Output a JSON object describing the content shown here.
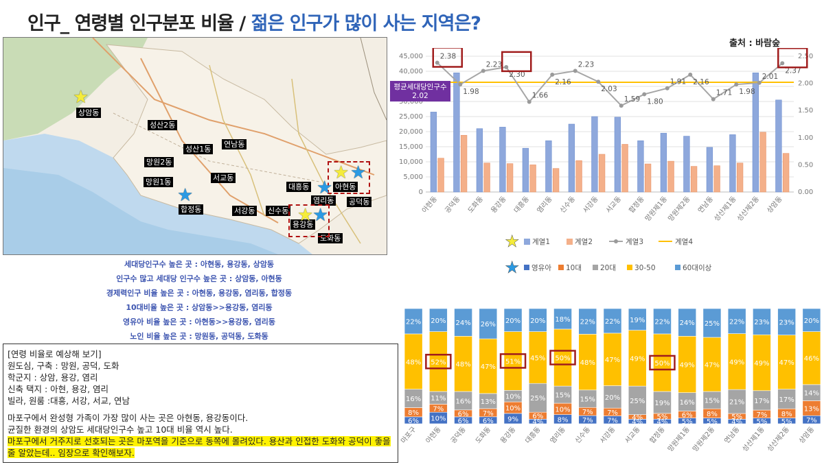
{
  "header": {
    "title_main": "인구_ 연령별 인구분포 비율 /",
    "title_highlight": "젊은 인구가 많이 사는 지역은?",
    "source": "출처 : 바람숲"
  },
  "map": {
    "labels": [
      "상암동",
      "성산2동",
      "성산1동",
      "연남동",
      "망원2동",
      "서교동",
      "망원1동",
      "대흥동",
      "아현동",
      "염리동",
      "공덕동",
      "합정동",
      "서강동",
      "신수동",
      "용강동",
      "도화동"
    ]
  },
  "summary": {
    "lines": [
      "세대당인구수 높은 곳 : 아현동, 용강동, 상암동",
      "인구수 많고 세대당 인구수 높은 곳 : 상암동, 아현동",
      "경제력인구 비율 높은 곳 : 아현동, 용강동, 염리동, 합정동",
      "10대비율 높은 곳 : 상암동>>용강동, 염리동",
      "영유아 비율 높은 곳 : 아현동>>용강동, 염리동",
      "노인 비율 높은 곳 : 망원동, 공덕동, 도화동"
    ]
  },
  "notes": {
    "heading": "[연령 비율로 예상해 보기]",
    "items": [
      "원도심, 구축 : 망원, 공덕, 도화",
      "학군지 : 상암, 용강, 염리",
      "신축 택지 : 아현, 용강, 염리",
      "빌라, 원룸 :대흥, 서강, 서교, 연남"
    ],
    "para1": "마포구에서 완성형 가족이 가장 많이 사는 곳은 아현동, 용강동이다.",
    "para2": "균질한 환경의 상암도 세대당인구수 높고 10대 비율 역시 높다.",
    "highlight": "마포구에서 거주지로 선호되는 곳은 마포역을 기준으로 동쪽에 몰려있다. 용산과 인접한 도화와 공덕이 좋을 줄 알았는데.. 임장으로 확인해보자."
  },
  "colors": {
    "series1": "#8ea8dc",
    "series2": "#f4b08a",
    "series3": "#a6a6a6",
    "series4": "#ffc000",
    "infant": "#4472c4",
    "teen": "#ed7d31",
    "twenties": "#a5a5a5",
    "thirty_fifty": "#ffc000",
    "sixty_plus": "#5b9bd5",
    "callout_box": "#a01c1c",
    "avg_label_bg": "#7030a0"
  },
  "chart_data": [
    {
      "type": "bar",
      "categories": [
        "아현동",
        "공덕동",
        "도화동",
        "용강동",
        "대흥동",
        "염리동",
        "신수동",
        "서강동",
        "서교동",
        "합정동",
        "망원제1동",
        "망원제2동",
        "연남동",
        "성산제1동",
        "성산제2동",
        "상암동"
      ],
      "ylim": [
        0,
        45000
      ],
      "y_ticks": [
        "0",
        "5,000",
        "10,000",
        "15,000",
        "20,000",
        "25,000",
        "30,000",
        "35,000",
        "40,000",
        "45,000"
      ],
      "y2lim": [
        0,
        2.5
      ],
      "y2_ticks": [
        "0.00",
        "0.50",
        "1.00",
        "1.50",
        "2.00",
        "2.50"
      ],
      "series": [
        {
          "name": "계열1",
          "axis": "left",
          "values": [
            26500,
            39500,
            21000,
            21500,
            14500,
            17000,
            22500,
            25000,
            24800,
            17000,
            19500,
            18500,
            14800,
            19000,
            39500,
            30500
          ]
        },
        {
          "name": "계열2",
          "axis": "left",
          "values": [
            11200,
            18800,
            9600,
            9400,
            9000,
            7800,
            10400,
            12500,
            15800,
            9300,
            10200,
            8500,
            8700,
            9600,
            19800,
            12800
          ]
        },
        {
          "name": "계열3",
          "axis": "right",
          "values": [
            2.38,
            1.98,
            2.23,
            2.3,
            1.66,
            2.16,
            2.23,
            2.03,
            1.59,
            1.8,
            1.91,
            2.16,
            1.71,
            1.98,
            2.01,
            2.37
          ],
          "labels": [
            "2.38",
            "1.98",
            "2.23",
            "2.30",
            "1.66",
            "2.16",
            "2.23",
            "2.03",
            "1.59",
            "1.80",
            "1.91",
            "2.16",
            "1.71",
            "1.98",
            "2.01",
            "2.37"
          ]
        },
        {
          "name": "계열4",
          "axis": "right",
          "values": [
            2.02,
            2.02,
            2.02,
            2.02,
            2.02,
            2.02,
            2.02,
            2.02,
            2.02,
            2.02,
            2.02,
            2.02,
            2.02,
            2.02,
            2.02,
            2.02
          ]
        }
      ],
      "annotation": {
        "label": "평균세대당인구수",
        "value": "2.02"
      },
      "highlighted": [
        "아현동",
        "용강동",
        "상암동"
      ]
    },
    {
      "type": "bar",
      "stacked": true,
      "percent": true,
      "categories": [
        "마포구",
        "아현동",
        "공덕동",
        "도화동",
        "용강동",
        "대흥동",
        "염리동",
        "신수동",
        "서강동",
        "서교동",
        "합정동",
        "망원제1동",
        "망원제2동",
        "연남동",
        "성산제1동",
        "성산제2동",
        "상암동"
      ],
      "series": [
        {
          "name": "영유아",
          "values": [
            6,
            10,
            6,
            6,
            9,
            4,
            8,
            7,
            7,
            4,
            4,
            5,
            5,
            4,
            5,
            5,
            7
          ]
        },
        {
          "name": "10대",
          "values": [
            8,
            7,
            6,
            7,
            10,
            6,
            10,
            7,
            7,
            4,
            5,
            6,
            8,
            5,
            7,
            8,
            13
          ]
        },
        {
          "name": "20대",
          "values": [
            16,
            11,
            16,
            13,
            10,
            25,
            15,
            15,
            20,
            25,
            19,
            16,
            15,
            21,
            17,
            17,
            14
          ]
        },
        {
          "name": "30-50",
          "values": [
            48,
            52,
            48,
            47,
            51,
            45,
            50,
            48,
            47,
            49,
            50,
            49,
            47,
            49,
            49,
            47,
            46
          ]
        },
        {
          "name": "60대이상",
          "values": [
            22,
            20,
            24,
            26,
            20,
            20,
            18,
            22,
            22,
            19,
            22,
            24,
            25,
            22,
            23,
            23,
            20
          ]
        }
      ],
      "highlighted": [
        "아현동",
        "용강동",
        "염리동",
        "합정동"
      ]
    }
  ]
}
